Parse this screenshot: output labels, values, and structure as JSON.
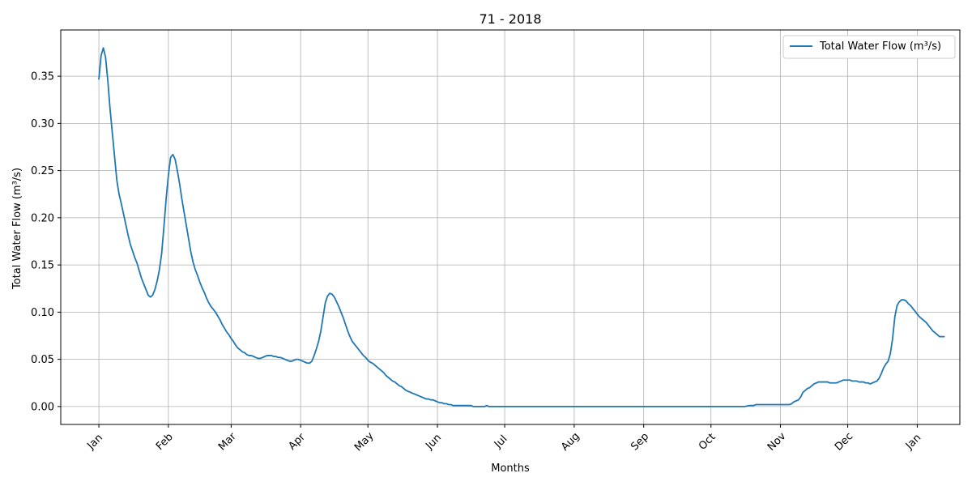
{
  "chart_data": {
    "type": "line",
    "title": "71 - 2018",
    "xlabel": "Months",
    "ylabel": "Total Water Flow (m³/s)",
    "x_tick_labels": [
      "Jan",
      "Feb",
      "Mar",
      "Apr",
      "May",
      "Jun",
      "Jul",
      "Aug",
      "Sep",
      "Oct",
      "Nov",
      "Dec",
      "Jan"
    ],
    "y_tick_labels": [
      "0.00",
      "0.05",
      "0.10",
      "0.15",
      "0.20",
      "0.25",
      "0.30",
      "0.35"
    ],
    "y_ticks": [
      0,
      0.05,
      0.1,
      0.15,
      0.2,
      0.25,
      0.3,
      0.35
    ],
    "ylim": [
      -0.019,
      0.399
    ],
    "xlim_days": [
      -17,
      384
    ],
    "grid": true,
    "legend_position": "top-right",
    "series": [
      {
        "name": "Total Water Flow (m³/s)",
        "color": "#1f77b4",
        "points": [
          [
            0,
            0.347
          ],
          [
            1,
            0.372
          ],
          [
            2,
            0.38
          ],
          [
            3,
            0.37
          ],
          [
            4,
            0.345
          ],
          [
            5,
            0.315
          ],
          [
            6,
            0.29
          ],
          [
            7,
            0.265
          ],
          [
            8,
            0.24
          ],
          [
            9,
            0.225
          ],
          [
            10,
            0.215
          ],
          [
            11,
            0.204
          ],
          [
            12,
            0.193
          ],
          [
            13,
            0.182
          ],
          [
            14,
            0.172
          ],
          [
            15,
            0.165
          ],
          [
            16,
            0.158
          ],
          [
            17,
            0.152
          ],
          [
            18,
            0.144
          ],
          [
            19,
            0.136
          ],
          [
            20,
            0.13
          ],
          [
            21,
            0.124
          ],
          [
            22,
            0.118
          ],
          [
            23,
            0.116
          ],
          [
            24,
            0.118
          ],
          [
            25,
            0.124
          ],
          [
            26,
            0.133
          ],
          [
            27,
            0.145
          ],
          [
            28,
            0.162
          ],
          [
            29,
            0.19
          ],
          [
            30,
            0.22
          ],
          [
            31,
            0.245
          ],
          [
            32,
            0.264
          ],
          [
            33,
            0.267
          ],
          [
            34,
            0.262
          ],
          [
            35,
            0.25
          ],
          [
            36,
            0.236
          ],
          [
            37,
            0.22
          ],
          [
            38,
            0.206
          ],
          [
            39,
            0.192
          ],
          [
            40,
            0.178
          ],
          [
            41,
            0.164
          ],
          [
            42,
            0.153
          ],
          [
            43,
            0.145
          ],
          [
            44,
            0.139
          ],
          [
            45,
            0.132
          ],
          [
            46,
            0.126
          ],
          [
            47,
            0.121
          ],
          [
            48,
            0.115
          ],
          [
            49,
            0.11
          ],
          [
            50,
            0.106
          ],
          [
            51,
            0.103
          ],
          [
            52,
            0.1
          ],
          [
            53,
            0.096
          ],
          [
            54,
            0.092
          ],
          [
            55,
            0.087
          ],
          [
            56,
            0.083
          ],
          [
            57,
            0.079
          ],
          [
            58,
            0.076
          ],
          [
            59,
            0.072
          ],
          [
            60,
            0.069
          ],
          [
            61,
            0.065
          ],
          [
            62,
            0.062
          ],
          [
            63,
            0.06
          ],
          [
            64,
            0.058
          ],
          [
            65,
            0.057
          ],
          [
            66,
            0.055
          ],
          [
            67,
            0.054
          ],
          [
            68,
            0.054
          ],
          [
            69,
            0.053
          ],
          [
            70,
            0.052
          ],
          [
            71,
            0.051
          ],
          [
            72,
            0.051
          ],
          [
            73,
            0.052
          ],
          [
            74,
            0.053
          ],
          [
            75,
            0.054
          ],
          [
            76,
            0.054
          ],
          [
            77,
            0.054
          ],
          [
            78,
            0.053
          ],
          [
            79,
            0.053
          ],
          [
            80,
            0.052
          ],
          [
            81,
            0.052
          ],
          [
            82,
            0.051
          ],
          [
            83,
            0.05
          ],
          [
            84,
            0.049
          ],
          [
            85,
            0.048
          ],
          [
            86,
            0.048
          ],
          [
            87,
            0.049
          ],
          [
            88,
            0.05
          ],
          [
            89,
            0.05
          ],
          [
            90,
            0.049
          ],
          [
            91,
            0.048
          ],
          [
            92,
            0.047
          ],
          [
            93,
            0.046
          ],
          [
            94,
            0.046
          ],
          [
            95,
            0.048
          ],
          [
            96,
            0.054
          ],
          [
            97,
            0.061
          ],
          [
            98,
            0.069
          ],
          [
            99,
            0.08
          ],
          [
            100,
            0.095
          ],
          [
            101,
            0.11
          ],
          [
            102,
            0.117
          ],
          [
            103,
            0.12
          ],
          [
            104,
            0.119
          ],
          [
            105,
            0.116
          ],
          [
            106,
            0.111
          ],
          [
            107,
            0.106
          ],
          [
            108,
            0.1
          ],
          [
            109,
            0.094
          ],
          [
            110,
            0.087
          ],
          [
            111,
            0.08
          ],
          [
            112,
            0.074
          ],
          [
            113,
            0.069
          ],
          [
            114,
            0.066
          ],
          [
            115,
            0.063
          ],
          [
            116,
            0.06
          ],
          [
            117,
            0.057
          ],
          [
            118,
            0.054
          ],
          [
            119,
            0.052
          ],
          [
            120,
            0.049
          ],
          [
            121,
            0.047
          ],
          [
            122,
            0.046
          ],
          [
            123,
            0.044
          ],
          [
            124,
            0.042
          ],
          [
            125,
            0.04
          ],
          [
            126,
            0.038
          ],
          [
            127,
            0.036
          ],
          [
            128,
            0.033
          ],
          [
            129,
            0.031
          ],
          [
            130,
            0.029
          ],
          [
            131,
            0.027
          ],
          [
            132,
            0.026
          ],
          [
            133,
            0.024
          ],
          [
            134,
            0.022
          ],
          [
            135,
            0.021
          ],
          [
            136,
            0.019
          ],
          [
            137,
            0.017
          ],
          [
            138,
            0.016
          ],
          [
            139,
            0.015
          ],
          [
            140,
            0.014
          ],
          [
            141,
            0.013
          ],
          [
            142,
            0.012
          ],
          [
            143,
            0.011
          ],
          [
            144,
            0.01
          ],
          [
            145,
            0.009
          ],
          [
            146,
            0.008
          ],
          [
            147,
            0.008
          ],
          [
            148,
            0.007
          ],
          [
            149,
            0.007
          ],
          [
            150,
            0.006
          ],
          [
            151,
            0.005
          ],
          [
            152,
            0.004
          ],
          [
            153,
            0.004
          ],
          [
            154,
            0.003
          ],
          [
            155,
            0.003
          ],
          [
            156,
            0.002
          ],
          [
            157,
            0.002
          ],
          [
            158,
            0.001
          ],
          [
            160,
            0.001
          ],
          [
            162,
            0.001
          ],
          [
            164,
            0.001
          ],
          [
            166,
            0.001
          ],
          [
            167,
            0.0
          ],
          [
            170,
            0.0
          ],
          [
            172,
            0.0
          ],
          [
            173,
            0.001
          ],
          [
            174,
            0.0
          ],
          [
            180,
            0.0
          ],
          [
            200,
            0.0
          ],
          [
            220,
            0.0
          ],
          [
            240,
            0.0
          ],
          [
            260,
            0.0
          ],
          [
            280,
            0.0
          ],
          [
            288,
            0.0
          ],
          [
            290,
            0.001
          ],
          [
            292,
            0.001
          ],
          [
            293,
            0.002
          ],
          [
            296,
            0.002
          ],
          [
            300,
            0.002
          ],
          [
            305,
            0.002
          ],
          [
            308,
            0.002
          ],
          [
            309,
            0.003
          ],
          [
            310,
            0.005
          ],
          [
            311,
            0.006
          ],
          [
            312,
            0.007
          ],
          [
            313,
            0.01
          ],
          [
            314,
            0.015
          ],
          [
            315,
            0.017
          ],
          [
            316,
            0.019
          ],
          [
            317,
            0.02
          ],
          [
            318,
            0.022
          ],
          [
            319,
            0.024
          ],
          [
            320,
            0.025
          ],
          [
            321,
            0.026
          ],
          [
            322,
            0.026
          ],
          [
            324,
            0.026
          ],
          [
            325,
            0.026
          ],
          [
            326,
            0.025
          ],
          [
            328,
            0.025
          ],
          [
            329,
            0.025
          ],
          [
            330,
            0.026
          ],
          [
            331,
            0.027
          ],
          [
            332,
            0.028
          ],
          [
            334,
            0.028
          ],
          [
            335,
            0.028
          ],
          [
            336,
            0.027
          ],
          [
            338,
            0.027
          ],
          [
            339,
            0.026
          ],
          [
            341,
            0.026
          ],
          [
            342,
            0.025
          ],
          [
            343,
            0.025
          ],
          [
            344,
            0.024
          ],
          [
            345,
            0.025
          ],
          [
            346,
            0.026
          ],
          [
            347,
            0.027
          ],
          [
            348,
            0.03
          ],
          [
            349,
            0.035
          ],
          [
            350,
            0.041
          ],
          [
            351,
            0.045
          ],
          [
            352,
            0.048
          ],
          [
            353,
            0.056
          ],
          [
            354,
            0.072
          ],
          [
            355,
            0.095
          ],
          [
            356,
            0.107
          ],
          [
            357,
            0.111
          ],
          [
            358,
            0.113
          ],
          [
            359,
            0.113
          ],
          [
            360,
            0.112
          ],
          [
            361,
            0.109
          ],
          [
            362,
            0.107
          ],
          [
            363,
            0.104
          ],
          [
            364,
            0.101
          ],
          [
            365,
            0.098
          ],
          [
            366,
            0.095
          ],
          [
            367,
            0.093
          ],
          [
            368,
            0.091
          ],
          [
            369,
            0.089
          ],
          [
            370,
            0.086
          ],
          [
            371,
            0.083
          ],
          [
            372,
            0.08
          ],
          [
            373,
            0.078
          ],
          [
            374,
            0.076
          ],
          [
            375,
            0.074
          ],
          [
            376,
            0.074
          ],
          [
            377,
            0.074
          ]
        ]
      }
    ]
  }
}
